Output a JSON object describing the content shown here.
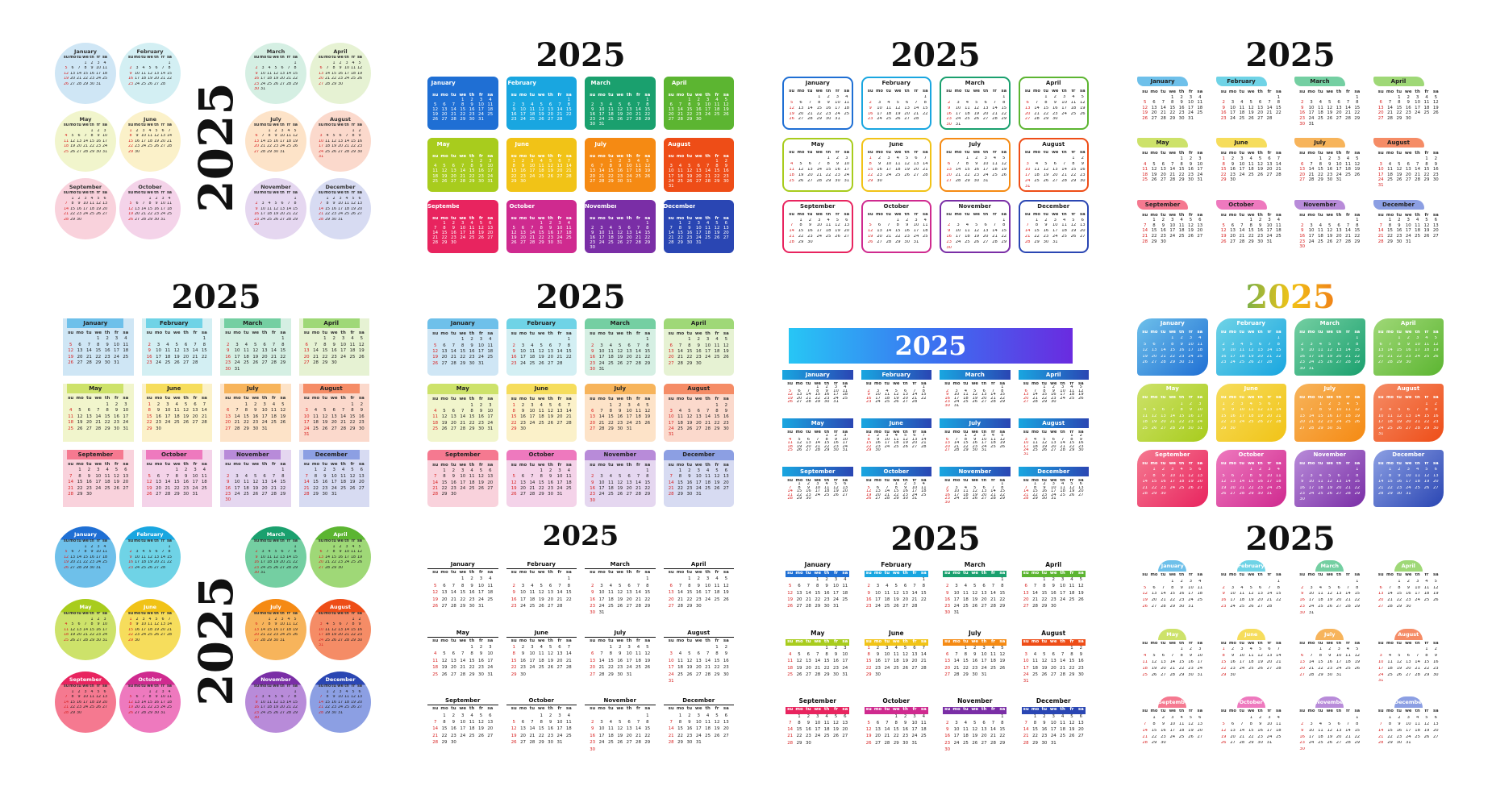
{
  "year": "2025",
  "months": [
    "January",
    "February",
    "March",
    "April",
    "May",
    "June",
    "July",
    "August",
    "September",
    "October",
    "November",
    "December"
  ],
  "weekdays": [
    "su",
    "mo",
    "tu",
    "we",
    "th",
    "fr",
    "sa"
  ],
  "colors": {
    "rainbow": [
      "#1f6fd4",
      "#19a6e0",
      "#1aa06e",
      "#5cb531",
      "#a8cc1d",
      "#f1c317",
      "#f58a13",
      "#ee4d17",
      "#e8245f",
      "#cf2a8f",
      "#7a2ea6",
      "#2a46b3"
    ],
    "pastel": [
      "#cfe6f5",
      "#d3eff3",
      "#d5efe3",
      "#e6f2d3",
      "#f1f5cc",
      "#fbf1c9",
      "#fde3c8",
      "#fbd9cc",
      "#f9d2dc",
      "#f4d3e9",
      "#e5d7f0",
      "#d7dbf2"
    ],
    "bright_pastel": [
      "#6ec0ea",
      "#6fd3e6",
      "#74cfa2",
      "#9fd877",
      "#cde26a",
      "#f6dd5c",
      "#f7b45b",
      "#f58c66",
      "#f57990",
      "#ee79be",
      "#b88bd9",
      "#8c9fe3"
    ],
    "text_dark": "#111111",
    "sunday_red": "#d82020",
    "banner_gradient": [
      "#27c6f5",
      "#3d6cf0",
      "#6a2be0"
    ]
  },
  "layout_variants": [
    {
      "name": "circles-pastel-vertical-year"
    },
    {
      "name": "tabbed-cards-rainbow"
    },
    {
      "name": "outlined-rounded-boxes"
    },
    {
      "name": "brush-stroke-headers"
    },
    {
      "name": "ribbon-headers"
    },
    {
      "name": "filled-pastel-cards"
    },
    {
      "name": "gradient-banner-year"
    },
    {
      "name": "leaf-shaped-gradient-cards"
    },
    {
      "name": "circles-bright-vertical-year"
    },
    {
      "name": "minimal-underline"
    },
    {
      "name": "color-weekday-bars"
    },
    {
      "name": "semicircle-headers"
    }
  ]
}
